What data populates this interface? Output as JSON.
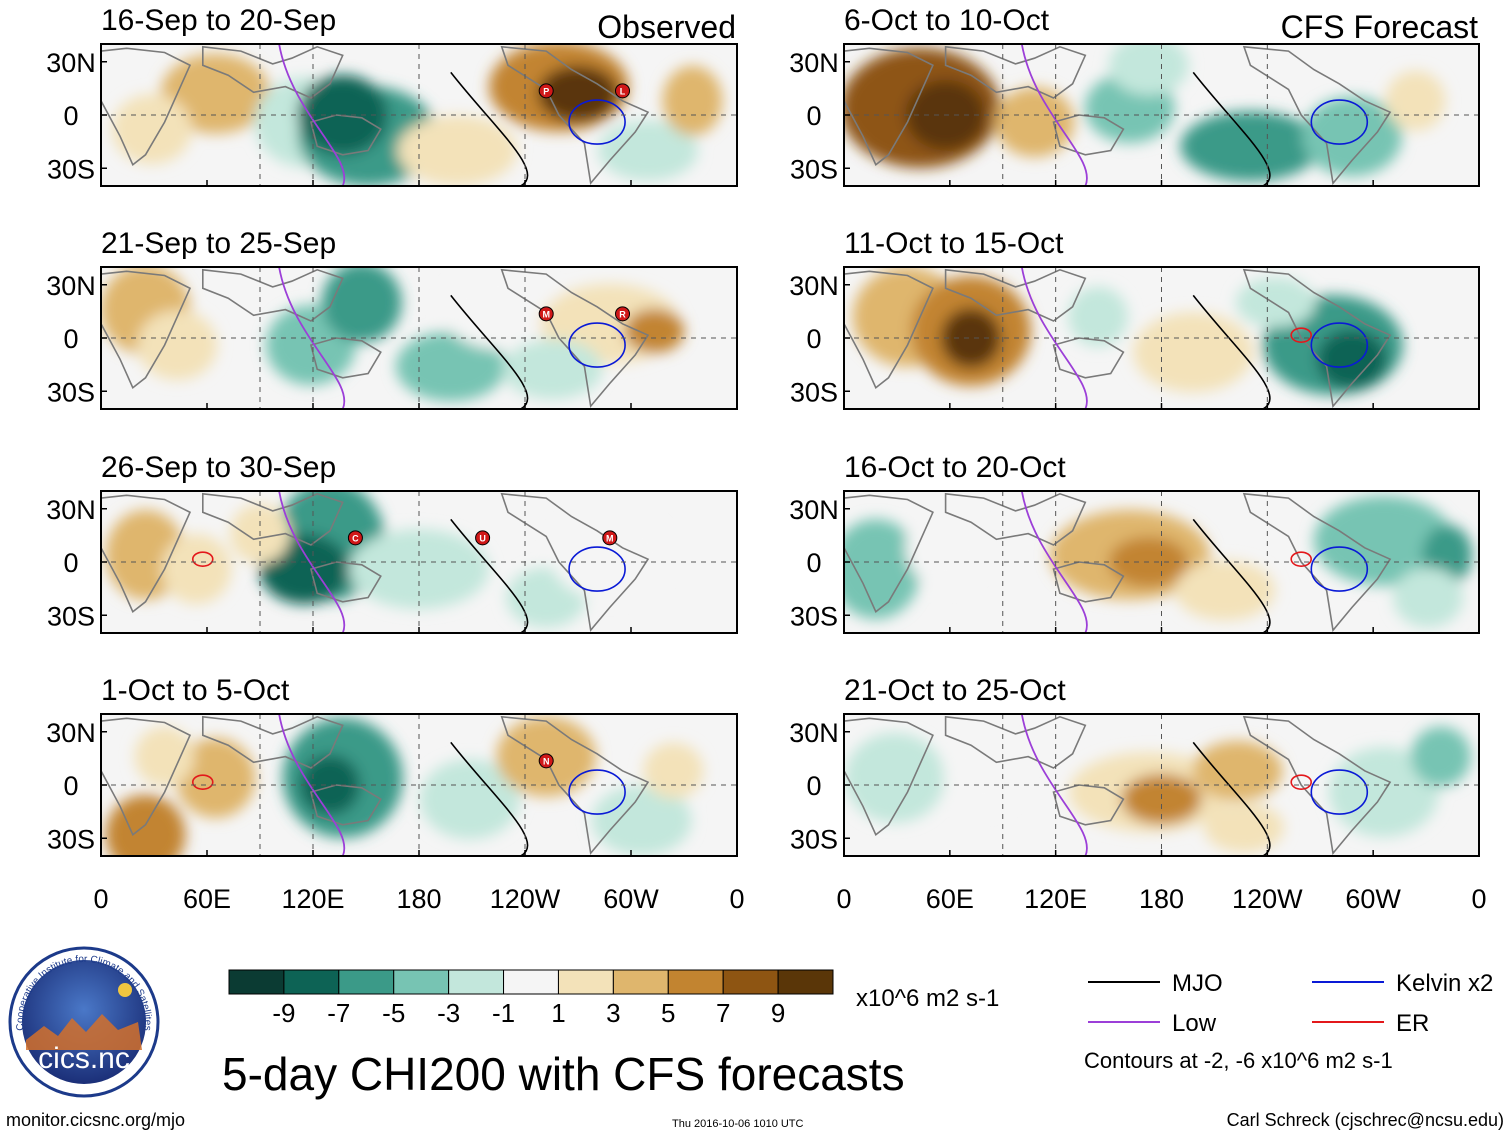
{
  "chart_data": {
    "type": "heatmap",
    "title": "5-day CHI200 with CFS forecasts",
    "variable": "CHI200",
    "units": "x10^6 m2 s-1",
    "panel_labels": {
      "observed": "Observed",
      "forecast": "CFS Forecast"
    },
    "panels": [
      {
        "id": "p1",
        "title": "16-Sep to 20-Sep",
        "column": "Observed",
        "hurricanes": [
          "P",
          "L"
        ]
      },
      {
        "id": "p2",
        "title": "21-Sep to 25-Sep",
        "column": "Observed",
        "hurricanes": [
          "M",
          "R"
        ]
      },
      {
        "id": "p3",
        "title": "26-Sep to 30-Sep",
        "column": "Observed",
        "hurricanes": [
          "C",
          "U",
          "M"
        ]
      },
      {
        "id": "p4",
        "title": "1-Oct to 5-Oct",
        "column": "Observed",
        "hurricanes": [
          "N"
        ]
      },
      {
        "id": "p5",
        "title": "6-Oct to 10-Oct",
        "column": "CFS Forecast",
        "hurricanes": []
      },
      {
        "id": "p6",
        "title": "11-Oct to 15-Oct",
        "column": "CFS Forecast",
        "hurricanes": []
      },
      {
        "id": "p7",
        "title": "16-Oct to 20-Oct",
        "column": "CFS Forecast",
        "hurricanes": []
      },
      {
        "id": "p8",
        "title": "21-Oct to 25-Oct",
        "column": "CFS Forecast",
        "hurricanes": []
      }
    ],
    "x_ticks": [
      "0",
      "60E",
      "120E",
      "180",
      "120W",
      "60W",
      "0"
    ],
    "x_tick_values": [
      0,
      60,
      120,
      180,
      240,
      300,
      360
    ],
    "y_ticks": [
      "30N",
      "0",
      "30S"
    ],
    "y_tick_values": [
      30,
      0,
      -30
    ],
    "xlim": [
      0,
      360
    ],
    "ylim": [
      -40,
      40
    ],
    "colorbar": {
      "labels": [
        "-9",
        "-7",
        "-5",
        "-3",
        "-1",
        "1",
        "3",
        "5",
        "7",
        "9"
      ],
      "colors": [
        "#0b3b33",
        "#0d6355",
        "#3b9a88",
        "#77c4b3",
        "#c3e7dc",
        "#f5f5f5",
        "#f3e2b9",
        "#dfb66d",
        "#c28430",
        "#8e5512",
        "#5a3608"
      ],
      "units": "x10^6 m2 s-1"
    },
    "legend": [
      {
        "label": "MJO",
        "color": "#000000"
      },
      {
        "label": "Kelvin x2",
        "color": "#0a1ad6"
      },
      {
        "label": "Low",
        "color": "#9c3fd8"
      },
      {
        "label": "ER",
        "color": "#e3181b"
      }
    ],
    "contour_note": "Contours at -2, -6 x10^6 m2 s-1"
  },
  "footer": {
    "url": "monitor.cicsnc.org/mjo",
    "timestamp": "Thu 2016-10-06 1010 UTC",
    "author": "Carl Schreck (cjschrec@ncsu.edu)"
  },
  "logo": {
    "name": "cics.nc",
    "ring_text": "Cooperative Institute for Climate and Satellites"
  }
}
